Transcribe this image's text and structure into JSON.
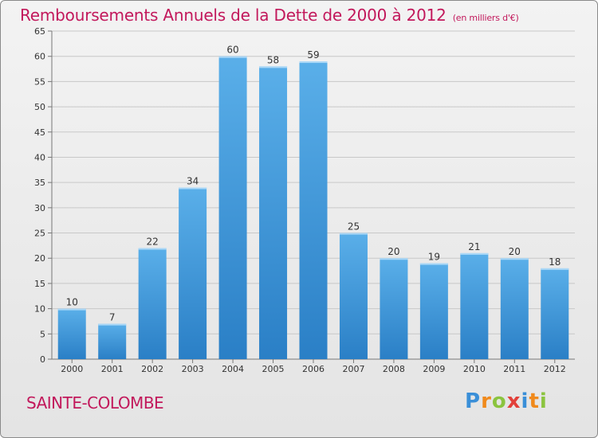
{
  "header": {
    "title": "Remboursements Annuels de la Dette de 2000 à 2012",
    "unit_note": "(en milliers d'€)"
  },
  "footer": {
    "commune": "SAINTE-COLOMBE",
    "logo_text": "Proxiti",
    "logo_letters": [
      {
        "ch": "P",
        "color": "#3a8fd8"
      },
      {
        "ch": "r",
        "color": "#f08a1c"
      },
      {
        "ch": "o",
        "color": "#8bc43f"
      },
      {
        "ch": "x",
        "color": "#e2403a"
      },
      {
        "ch": "i",
        "color": "#3a8fd8"
      },
      {
        "ch": "t",
        "color": "#f08a1c"
      },
      {
        "ch": "i",
        "color": "#8bc43f"
      }
    ]
  },
  "colors": {
    "title": "#c2185b",
    "bar_top": "#5aafe9",
    "bar_bottom": "#2a7fc6",
    "grid": "#c8c8c8"
  },
  "chart_data": {
    "type": "bar",
    "title": "Remboursements Annuels de la Dette de 2000 à 2012",
    "xlabel": "",
    "ylabel": "",
    "categories": [
      "2000",
      "2001",
      "2002",
      "2003",
      "2004",
      "2005",
      "2006",
      "2007",
      "2008",
      "2009",
      "2010",
      "2011",
      "2012"
    ],
    "values": [
      10,
      7,
      22,
      34,
      60,
      58,
      59,
      25,
      20,
      19,
      21,
      20,
      18
    ],
    "ylim": [
      0,
      65
    ],
    "yticks": [
      0,
      5,
      10,
      15,
      20,
      25,
      30,
      35,
      40,
      45,
      50,
      55,
      60,
      65
    ],
    "grid": true
  }
}
